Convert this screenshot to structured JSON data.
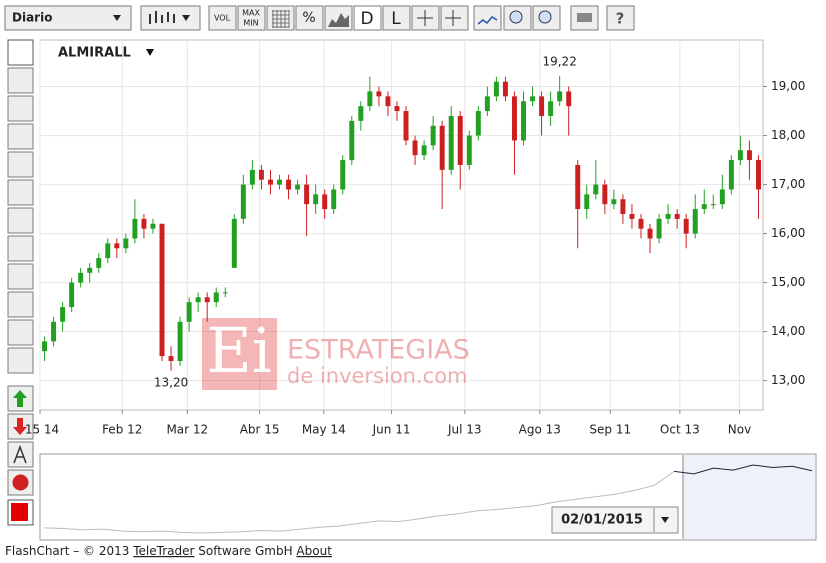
{
  "toolbar": {
    "period": "Diario",
    "buttons": [
      "VOL",
      "MAX",
      "MIN",
      "%",
      "D",
      "L",
      "?"
    ]
  },
  "chart_data": {
    "type": "candlestick",
    "title": "ALMIRALL",
    "high_label": "19,22",
    "low_label": "13,20",
    "up_color": "#22a022",
    "down_color": "#cc2020",
    "grid": true,
    "xlim": [
      0,
      80
    ],
    "xticks": [
      {
        "value": 0,
        "label": "15 14"
      },
      {
        "value": 9.1,
        "label": "Feb 12"
      },
      {
        "value": 16.3,
        "label": "Mar 12"
      },
      {
        "value": 24.3,
        "label": "Abr 15"
      },
      {
        "value": 31.4,
        "label": "May 14"
      },
      {
        "value": 38.9,
        "label": "Jun 11"
      },
      {
        "value": 47,
        "label": "Jul 13"
      },
      {
        "value": 55.3,
        "label": "Ago 13"
      },
      {
        "value": 63.1,
        "label": "Sep 11"
      },
      {
        "value": 70.8,
        "label": "Oct 13"
      },
      {
        "value": 77.4,
        "label": "Nov"
      }
    ],
    "ylim": [
      12.4,
      19.95
    ],
    "yticks": [
      {
        "value": 13,
        "label": "13,00"
      },
      {
        "value": 14,
        "label": "14,00"
      },
      {
        "value": 15,
        "label": "15,00"
      },
      {
        "value": 16,
        "label": "16,00"
      },
      {
        "value": 17,
        "label": "17,00"
      },
      {
        "value": 18,
        "label": "18,00"
      },
      {
        "value": 19,
        "label": "19,00"
      }
    ],
    "open": [
      13.6,
      13.8,
      14.2,
      14.5,
      15.0,
      15.2,
      15.3,
      15.5,
      15.8,
      15.7,
      15.9,
      16.3,
      16.1,
      16.2,
      13.5,
      13.4,
      14.2,
      14.6,
      14.7,
      14.6,
      14.8,
      15.3,
      16.3,
      17.0,
      17.3,
      17.1,
      17.0,
      17.1,
      16.9,
      17.0,
      16.6,
      16.8,
      16.5,
      16.9,
      17.5,
      18.3,
      18.6,
      18.9,
      18.8,
      18.6,
      18.5,
      17.9,
      17.6,
      17.8,
      18.2,
      17.3,
      18.4,
      17.4,
      18.0,
      18.5,
      18.8,
      19.1,
      18.8,
      17.9,
      18.7,
      18.8,
      18.4,
      18.7,
      18.9,
      17.4,
      16.5,
      16.8,
      17.0,
      16.6,
      16.7,
      16.4,
      16.3,
      16.1,
      15.9,
      16.3,
      16.4,
      16.3,
      16.0,
      16.5,
      16.6,
      16.6,
      16.9,
      17.5,
      17.7,
      17.5
    ],
    "high": [
      13.9,
      14.3,
      14.6,
      15.1,
      15.3,
      15.4,
      15.6,
      15.9,
      15.9,
      16.0,
      16.7,
      16.4,
      16.3,
      16.2,
      13.7,
      14.3,
      14.7,
      14.8,
      14.8,
      14.9,
      14.9,
      16.4,
      17.2,
      17.5,
      17.4,
      17.3,
      17.2,
      17.2,
      17.1,
      17.2,
      17.0,
      16.9,
      17.0,
      17.6,
      18.4,
      18.7,
      19.2,
      19.0,
      18.9,
      18.7,
      18.6,
      18.0,
      17.9,
      18.4,
      18.3,
      18.6,
      18.5,
      18.1,
      18.6,
      19.0,
      19.2,
      19.2,
      18.9,
      18.9,
      19.0,
      18.9,
      18.9,
      19.22,
      19.0,
      17.5,
      17.0,
      17.5,
      17.1,
      16.9,
      16.8,
      16.6,
      16.4,
      16.2,
      16.4,
      16.6,
      16.5,
      16.4,
      16.8,
      16.9,
      16.8,
      17.2,
      17.6,
      18.0,
      17.9,
      17.6
    ],
    "low": [
      13.4,
      13.7,
      14.0,
      14.4,
      14.9,
      15.0,
      15.2,
      15.4,
      15.5,
      15.6,
      15.8,
      15.9,
      16.0,
      13.4,
      13.2,
      13.3,
      14.0,
      14.4,
      14.2,
      14.5,
      14.7,
      15.3,
      16.2,
      16.9,
      16.9,
      16.8,
      16.9,
      16.7,
      16.8,
      15.95,
      16.4,
      16.3,
      16.4,
      16.8,
      17.4,
      18.1,
      18.5,
      18.6,
      18.4,
      18.3,
      17.8,
      17.4,
      17.5,
      17.7,
      16.5,
      17.2,
      16.9,
      17.3,
      17.9,
      18.4,
      18.7,
      18.7,
      17.2,
      17.8,
      18.6,
      18.0,
      18.2,
      18.6,
      18.0,
      15.7,
      16.3,
      16.7,
      16.4,
      16.5,
      16.2,
      16.1,
      15.9,
      15.6,
      15.8,
      16.2,
      16.1,
      15.7,
      15.9,
      16.4,
      16.5,
      16.5,
      16.8,
      17.4,
      17.1,
      16.3
    ],
    "close": [
      13.8,
      14.2,
      14.5,
      15.0,
      15.2,
      15.3,
      15.5,
      15.8,
      15.7,
      15.9,
      16.3,
      16.1,
      16.2,
      13.5,
      13.4,
      14.2,
      14.6,
      14.7,
      14.6,
      14.8,
      14.8,
      16.3,
      17.0,
      17.3,
      17.1,
      17.0,
      17.1,
      16.9,
      17.0,
      16.6,
      16.8,
      16.5,
      16.9,
      17.5,
      18.3,
      18.6,
      18.9,
      18.8,
      18.6,
      18.5,
      17.9,
      17.6,
      17.8,
      18.2,
      17.3,
      18.4,
      17.4,
      18.0,
      18.5,
      18.8,
      19.1,
      18.8,
      17.9,
      18.7,
      18.8,
      18.4,
      18.7,
      18.9,
      18.6,
      16.5,
      16.8,
      17.0,
      16.6,
      16.7,
      16.4,
      16.3,
      16.1,
      15.9,
      16.3,
      16.4,
      16.3,
      16.0,
      16.5,
      16.6,
      16.6,
      16.9,
      17.5,
      17.7,
      17.5,
      16.9
    ]
  },
  "navigator": {
    "date": "02/01/2015",
    "values": [
      4.1,
      4.0,
      3.8,
      3.9,
      3.6,
      3.5,
      3.6,
      3.4,
      3.3,
      3.4,
      3.5,
      3.7,
      3.6,
      3.9,
      4.2,
      4.4,
      4.8,
      5.2,
      5.1,
      5.5,
      6.0,
      6.3,
      6.8,
      7.0,
      7.3,
      7.6,
      8.2,
      8.6,
      9.0,
      9.4,
      10.0,
      10.8,
      13.0,
      12.6,
      13.5,
      13.2,
      14.0,
      13.6,
      13.8,
      13.1
    ]
  },
  "watermark": {
    "logo": "Ei",
    "line1": "ESTRATEGIAS",
    "line2": "de inversion.com"
  },
  "footer": {
    "prefix": "FlashChart – © 2013",
    "company": "TeleTrader",
    "suffix": "Software GmbH",
    "about": "About"
  }
}
